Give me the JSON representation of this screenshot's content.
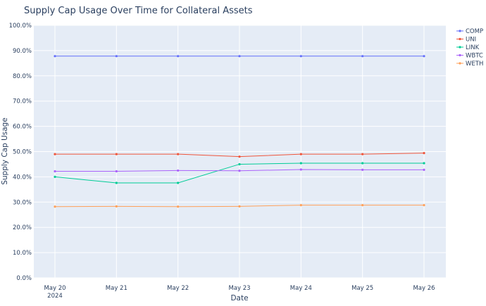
{
  "chart_data": {
    "type": "line",
    "title": "Supply Cap Usage Over Time for Collateral Assets",
    "xlabel": "Date",
    "ylabel": "Supply Cap Usage",
    "x": [
      "2024-05-20",
      "2024-05-21",
      "2024-05-22",
      "2024-05-23",
      "2024-05-24",
      "2024-05-25",
      "2024-05-26"
    ],
    "x_tick_labels": [
      "May 20",
      "May 21",
      "May 22",
      "May 23",
      "May 24",
      "May 25",
      "May 26"
    ],
    "x_tick_sublabel": "2024",
    "ylim": [
      0,
      1
    ],
    "y_ticks": [
      0,
      0.1,
      0.2,
      0.3,
      0.4,
      0.5,
      0.6,
      0.7,
      0.8,
      0.9,
      1.0
    ],
    "y_tick_labels": [
      "0.0%",
      "10.0%",
      "20.0%",
      "30.0%",
      "40.0%",
      "50.0%",
      "60.0%",
      "70.0%",
      "80.0%",
      "90.0%",
      "100.0%"
    ],
    "grid": true,
    "legend_position": "top-right",
    "series": [
      {
        "name": "COMP",
        "color": "#636efa",
        "values": [
          0.878,
          0.878,
          0.878,
          0.878,
          0.878,
          0.878,
          0.878
        ]
      },
      {
        "name": "UNI",
        "color": "#ef553b",
        "values": [
          0.49,
          0.49,
          0.49,
          0.48,
          0.49,
          0.49,
          0.494
        ]
      },
      {
        "name": "LINK",
        "color": "#00cc96",
        "values": [
          0.4,
          0.376,
          0.376,
          0.45,
          0.454,
          0.454,
          0.454
        ]
      },
      {
        "name": "WBTC",
        "color": "#ab63fa",
        "values": [
          0.422,
          0.422,
          0.425,
          0.424,
          0.429,
          0.428,
          0.428
        ]
      },
      {
        "name": "WETH",
        "color": "#ffa15a",
        "values": [
          0.282,
          0.283,
          0.282,
          0.283,
          0.288,
          0.288,
          0.288
        ]
      }
    ]
  }
}
